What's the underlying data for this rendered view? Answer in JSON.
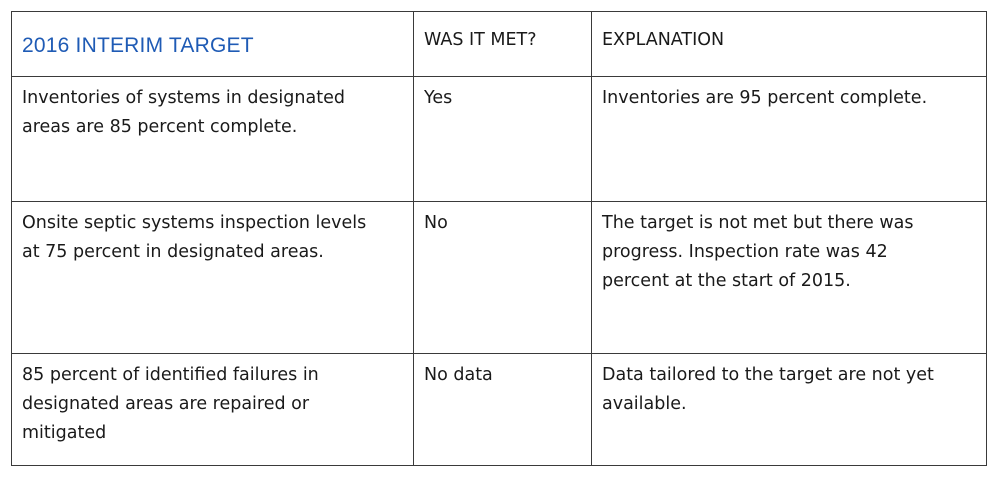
{
  "header": {
    "col1": "2016 INTERIM TARGET",
    "col2": "WAS IT MET?",
    "col3": "EXPLANATION"
  },
  "rows": [
    {
      "target": [
        "Inventories of systems in designated",
        "areas are 85 percent complete."
      ],
      "met": "Yes",
      "explanation": [
        "Inventories are 95 percent complete."
      ]
    },
    {
      "target": [
        "Onsite septic systems inspection levels",
        "at 75 percent in designated areas."
      ],
      "met": "No",
      "explanation": [
        "The target is not met but there was",
        "progress. Inspection rate was 42",
        "percent at the start of 2015."
      ]
    },
    {
      "target": [
        "85 percent of identified failures in",
        "designated areas are repaired or",
        "mitigated"
      ],
      "met": "No data",
      "explanation": [
        "Data tailored to the target are not yet",
        "available."
      ]
    }
  ],
  "colors": {
    "header_accent": "#1f5bb5",
    "border": "#3a3a3a",
    "text": "#1a1a1a"
  }
}
